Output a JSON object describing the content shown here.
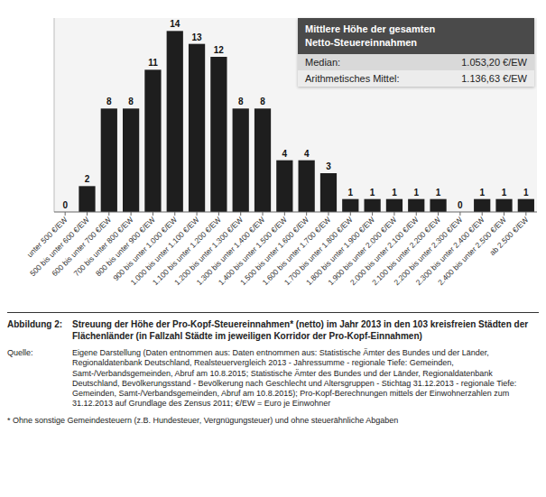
{
  "chart_data": {
    "type": "bar",
    "title": "Streuung der Höhe der Pro-Kopf-Steuereinnahmen* (netto) im Jahr 2013 in den 103 kreisfreien Städten der Flächenländer (in Fallzahl Städte im jeweiligen Korridor der Pro-Kopf-Einnahmen)",
    "categories": [
      "unter 500 €/EW",
      "500 bis unter 600 €/EW",
      "600 bis unter 700 €/EW",
      "700 bis unter 800 €/EW",
      "800 bis unter 900 €/EW",
      "900 bis unter 1.000 €/EW",
      "1.000 bis unter 1.100 €/EW",
      "1.100 bis unter 1.200 €/EW",
      "1.200 bis unter 1.300 €/EW",
      "1.300 bis unter 1.400 €/EW",
      "1.400 bis unter 1.500 €/EW",
      "1.500 bis unter 1.600 €/EW",
      "1.600 bis unter 1.700 €/EW",
      "1.700 bis unter 1.800 €/EW",
      "1.800 bis unter 1.900 €/EW",
      "1.900 bis unter 2.000 €/EW",
      "2.000 bis unter 2.100 €/EW",
      "2.100 bis unter 2.200 €/EW",
      "2.200 bis unter 2.300 €/EW",
      "2.300 bis unter 2.400 €/EW",
      "2.400 bis unter 2.500 €/EW",
      "ab 2.500 €/EW"
    ],
    "values": [
      0,
      2,
      8,
      8,
      11,
      14,
      13,
      12,
      8,
      8,
      4,
      4,
      3,
      1,
      1,
      1,
      1,
      1,
      0,
      1,
      1,
      1
    ],
    "color": "#1e1e1e",
    "ylim": [
      0,
      15
    ],
    "data_labels": true,
    "tick_labels": "x",
    "annotations": [
      "Abbildung 2:",
      "Mittlere Höhe der gesamten\nNetto-Steuereinnahmen",
      "Median:",
      "1.053,20 €/EW",
      "Arithmetisches Mittel:",
      "1.136,63 €/EW",
      "Quelle:",
      "Eigene Darstellung (Daten entnommen aus: Daten entnommen aus: Statistische Ämter des Bundes und der Länder, Regionaldatenbank Deutschland, Realsteuervergleich 2013 - Jahressumme - regionale Tiefe: Gemeinden, Samt-/Verbandsgemeinden, Abruf am 10.8.2015;  Statistische Ämter des Bundes und der Länder, Regionaldatenbank Deutschland, Bevölkerungsstand - Bevölkerung nach Geschlecht und Altersgruppen - Stichtag 31.12.2013 - regionale Tiefe: Gemeinden, Samt-/Verbandsgemeinden, Abruf am 10.8.2015); Pro-Kopf-Berechnungen mittels der Einwohnerzahlen zum 31.12.2013 auf Grundlage des Zensus 2011; €/EW = Euro je Einwohner",
      "* Ohne sonstige Gemeindesteuern (z.B. Hundesteuer, Vergnügungsteuer) und ohne steuerähnliche Abgaben"
    ]
  }
}
